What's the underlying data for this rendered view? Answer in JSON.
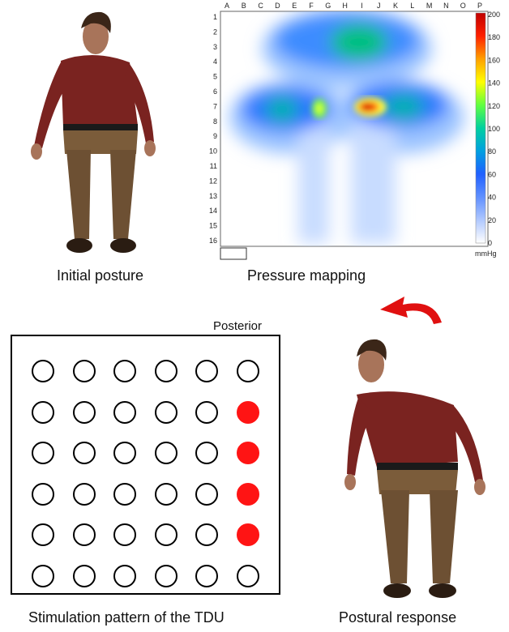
{
  "captions": {
    "initial": "Initial posture",
    "pressure": "Pressure mapping",
    "tdu": "Stimulation pattern of the TDU",
    "response": "Postural response"
  },
  "tdu_label": "Posterior",
  "pressure_map": {
    "columns": [
      "A",
      "B",
      "C",
      "D",
      "E",
      "F",
      "G",
      "H",
      "I",
      "J",
      "K",
      "L",
      "M",
      "N",
      "O",
      "P"
    ],
    "rows": [
      "1",
      "2",
      "3",
      "4",
      "5",
      "6",
      "7",
      "8",
      "9",
      "10",
      "11",
      "12",
      "13",
      "14",
      "15",
      "16"
    ],
    "colorbar": {
      "ticks": [
        "200",
        "180",
        "160",
        "140",
        "120",
        "100",
        "80",
        "60",
        "40",
        "20",
        "0"
      ],
      "unit": "mmHg",
      "colors": [
        "#c00000",
        "#ff2000",
        "#ffa000",
        "#ffff00",
        "#60ff40",
        "#00d0a0",
        "#00a0e0",
        "#2060ff",
        "#6090ff",
        "#b0c8ff",
        "#ffffff"
      ]
    }
  },
  "tdu_grid": {
    "rows": 6,
    "cols": 6,
    "active": [
      [
        1,
        5
      ],
      [
        2,
        5
      ],
      [
        3,
        5
      ],
      [
        4,
        5
      ]
    ],
    "active_color": "#ff1414"
  },
  "icons": {
    "arrow": "curved-arrow-icon",
    "figure": "seated-person-figure"
  }
}
